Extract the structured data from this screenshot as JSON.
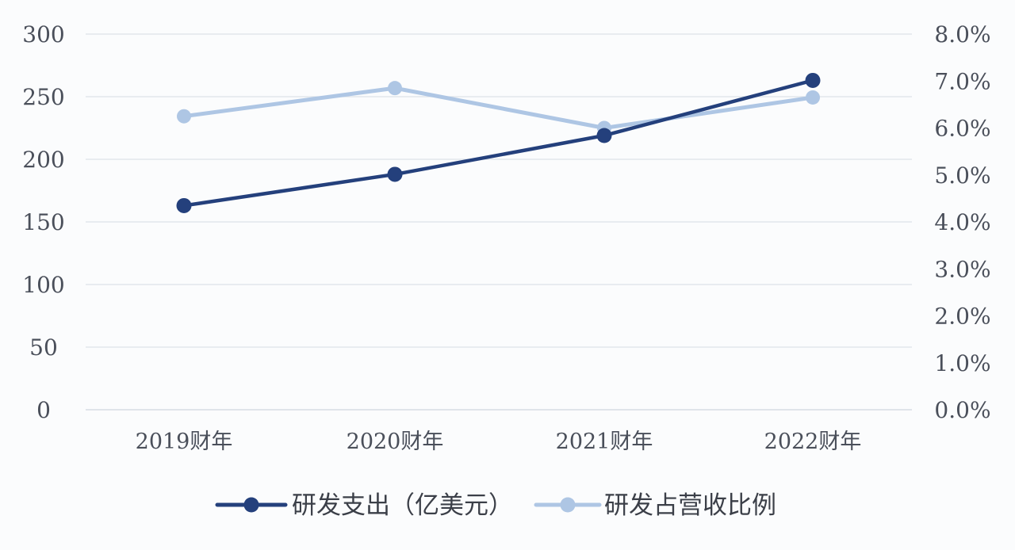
{
  "chart_data": {
    "type": "line",
    "categories": [
      "2019财年",
      "2020财年",
      "2021财年",
      "2022财年"
    ],
    "left_axis": {
      "ticks": [
        "0",
        "50",
        "100",
        "150",
        "200",
        "250",
        "300"
      ],
      "ylim": [
        0,
        300
      ]
    },
    "right_axis": {
      "ticks": [
        "0.0%",
        "1.0%",
        "2.0%",
        "3.0%",
        "4.0%",
        "5.0%",
        "6.0%",
        "7.0%",
        "8.0%"
      ],
      "ylim": [
        0,
        8
      ]
    },
    "series": [
      {
        "name": "研发支出（亿美元）",
        "axis": "left",
        "values": [
          163,
          188,
          219,
          263
        ],
        "color": "#24407c"
      },
      {
        "name": "研发占营收比例",
        "axis": "right",
        "values": [
          6.25,
          6.85,
          6.0,
          6.65
        ],
        "color": "#aec6e4"
      }
    ],
    "grid": true,
    "legend_position": "bottom"
  }
}
